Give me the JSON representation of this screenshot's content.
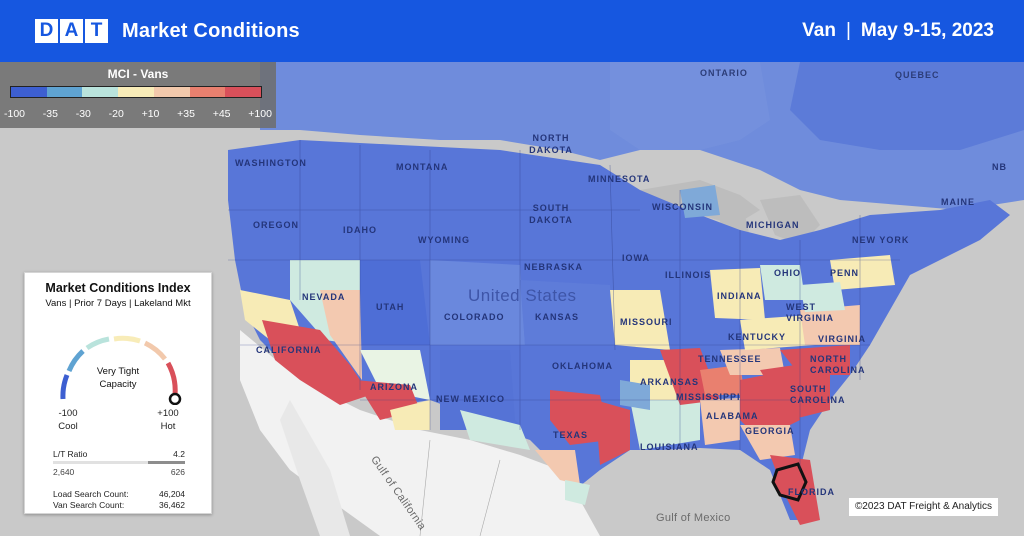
{
  "header": {
    "logo_letters": [
      "D",
      "A",
      "T"
    ],
    "title": "Market Conditions",
    "equipment": "Van",
    "separator": "|",
    "date_range": "May 9-15, 2023",
    "background": "#1657e0"
  },
  "mci_legend": {
    "title": "MCI - Vans",
    "ticks": [
      "-100",
      "-35",
      "-30",
      "-20",
      "+10",
      "+35",
      "+45",
      "+100"
    ],
    "colors": [
      "#3d5fd1",
      "#5fa3d2",
      "#b9e3dc",
      "#f8ecb8",
      "#f2c9ac",
      "#e9806f",
      "#d9505a"
    ]
  },
  "index_card": {
    "title": "Market Conditions Index",
    "subtitle": "Vans | Prior 7 Days | Lakeland Mkt",
    "status": "Very Tight Capacity",
    "min_value": "-100",
    "min_label": "Cool",
    "max_value": "+100",
    "max_label": "Hot",
    "lt_ratio_label": "L/T Ratio",
    "lt_ratio_value": "4.2",
    "lt_left": "2,640",
    "lt_right": "626",
    "load_search_label": "Load Search Count:",
    "load_search_value": "46,204",
    "van_search_label": "Van Search Count:",
    "van_search_value": "36,462",
    "gauge_level": 1.0
  },
  "map_labels": {
    "country": "United States",
    "canada_regions": [
      "ONTARIO",
      "QUEBEC"
    ],
    "states": [
      "WASHINGTON",
      "OREGON",
      "IDAHO",
      "MONTANA",
      "NORTH DAKOTA",
      "SOUTH DAKOTA",
      "WYOMING",
      "NEBRASKA",
      "NEVADA",
      "UTAH",
      "COLORADO",
      "KANSAS",
      "CALIFORNIA",
      "ARIZONA",
      "NEW MEXICO",
      "OKLAHOMA",
      "TEXAS",
      "MINNESOTA",
      "WISCONSIN",
      "IOWA",
      "MISSOURI",
      "ILLINOIS",
      "INDIANA",
      "OHIO",
      "ARKANSAS",
      "LOUISIANA",
      "MISSISSIPPI",
      "ALABAMA",
      "GEORGIA",
      "TENNESSEE",
      "KENTUCKY",
      "NORTH CAROLINA",
      "SOUTH CAROLINA",
      "VIRGINIA",
      "WEST VIRGINIA",
      "PENN",
      "NEW YORK",
      "MAINE",
      "NB",
      "MICHIGAN",
      "FLORIDA"
    ],
    "seas": [
      "Gulf of California",
      "Gulf of Mexico"
    ]
  },
  "copyright": "©2023 DAT Freight & Analytics"
}
